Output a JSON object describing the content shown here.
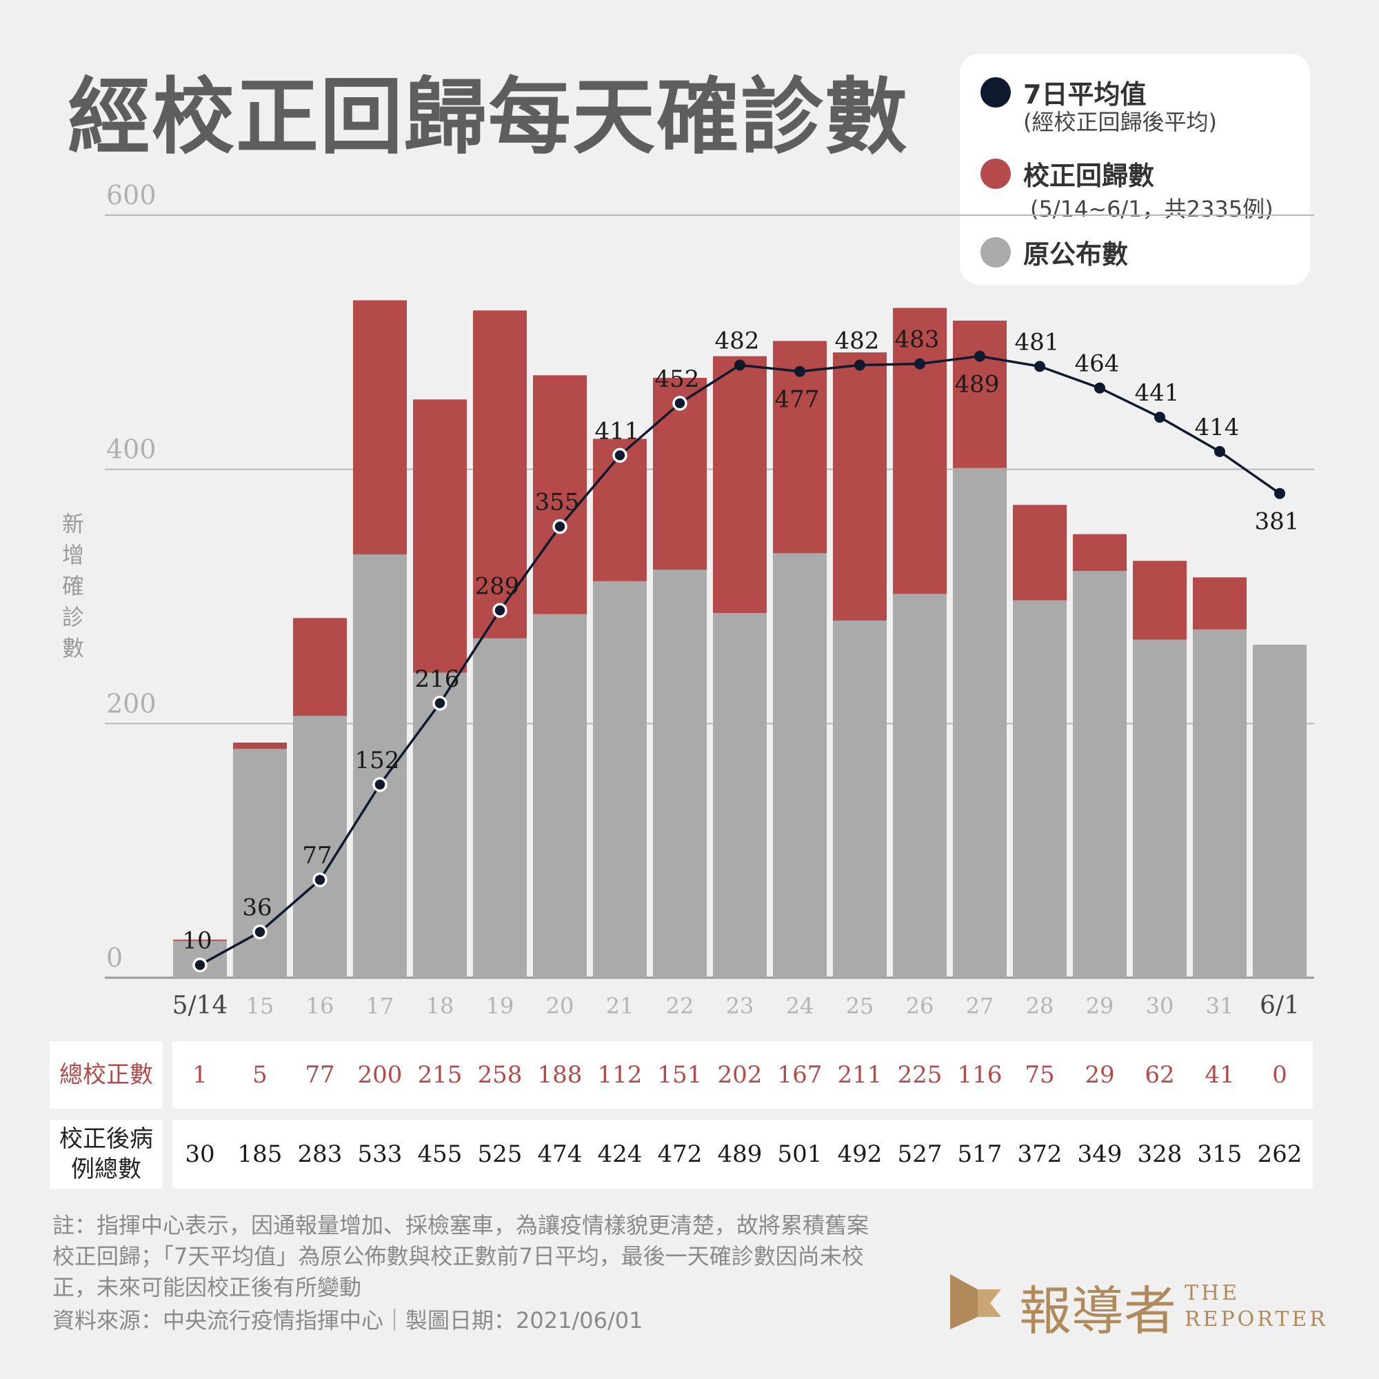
{
  "header": {
    "title": "經校正回歸每天確診數"
  },
  "legend": {
    "items": [
      {
        "title": "7日平均值",
        "sub": "(經校正回歸後平均)",
        "color": "#101a2e"
      },
      {
        "title": "校正回歸數",
        "sub": "(5/14~6/1，共2335例)",
        "color": "#b44b4a"
      },
      {
        "title": "原公布數",
        "sub": "",
        "color": "#aaaaaa"
      }
    ]
  },
  "axis": {
    "ylabel": "新增確診數"
  },
  "chart_data": {
    "type": "bar",
    "stacked": true,
    "categories": [
      "5/14",
      "15",
      "16",
      "17",
      "18",
      "19",
      "20",
      "21",
      "22",
      "23",
      "24",
      "25",
      "26",
      "27",
      "28",
      "29",
      "30",
      "31",
      "6/1"
    ],
    "series": [
      {
        "name": "原公布數",
        "color": "#aaaaaa",
        "values": [
          29,
          180,
          206,
          333,
          240,
          267,
          286,
          312,
          321,
          287,
          334,
          281,
          302,
          401,
          297,
          320,
          266,
          274,
          262
        ]
      },
      {
        "name": "校正回歸數",
        "color": "#b44b4a",
        "values": [
          1,
          5,
          77,
          200,
          215,
          258,
          188,
          112,
          151,
          202,
          167,
          211,
          225,
          116,
          75,
          29,
          62,
          41,
          0
        ]
      },
      {
        "name": "7日平均值",
        "type": "line",
        "color": "#101a2e",
        "values": [
          10,
          36,
          77,
          152,
          216,
          289,
          355,
          411,
          452,
          482,
          477,
          482,
          483,
          489,
          481,
          464,
          441,
          414,
          381
        ]
      }
    ],
    "ylim": [
      0,
      600
    ],
    "yticks": [
      0,
      200,
      400,
      600
    ],
    "grid": true,
    "legend": "top-right"
  },
  "table": {
    "corrections_label": "總校正數",
    "corrections": [
      1,
      5,
      77,
      200,
      215,
      258,
      188,
      112,
      151,
      202,
      167,
      211,
      225,
      116,
      75,
      29,
      62,
      41,
      0
    ],
    "totals_label": "校正後病例總數",
    "totals": [
      30,
      185,
      283,
      533,
      455,
      525,
      474,
      424,
      472,
      489,
      501,
      492,
      527,
      517,
      372,
      349,
      328,
      315,
      262
    ]
  },
  "footer": {
    "note": "註：指揮中心表示，因通報量增加、採檢塞車，為讓疫情樣貌更清楚，故將累積舊案校正回歸；「7天平均值」為原公佈數與校正數前7日平均，最後一天確診數因尚未校正，未來可能因校正後有所變動",
    "source": "資料來源：中央流行疫情指揮中心｜製圖日期：2021/06/01"
  },
  "brand": {
    "cn": "報導者",
    "en_line1": "THE",
    "en_line2": "REPORTER"
  },
  "colors": {
    "original": "#aaaaaa",
    "corrected": "#b44b4a",
    "average": "#101a2e",
    "brand": "#b08a5a"
  }
}
